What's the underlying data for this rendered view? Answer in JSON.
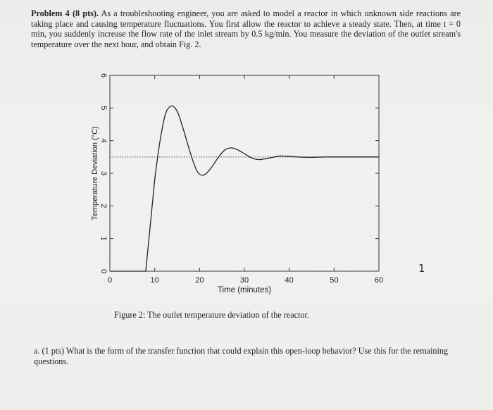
{
  "problem": {
    "heading": "Problem 4 (8 pts).",
    "text": " As a troubleshooting engineer, you are asked to model a reactor in which unknown side reactions are taking place and causing temperature fluctuations. You first allow the reactor to achieve a steady state. Then, at time t = 0 min, you suddenly increase the flow rate of the inlet stream by 0.5 kg/min. You measure the deviation of the outlet stream's temperature over the next hour, and obtain Fig. 2."
  },
  "figure": {
    "caption": "Figure 2:  The outlet temperature deviation of the reactor."
  },
  "question": {
    "label": "a.",
    "text": "(1 pts) What is the form of the transfer function that could explain this open-loop behavior? Use this for the remaining questions."
  },
  "handwritten_mark": "1",
  "chart_data": {
    "type": "line",
    "xlabel": "Time (minutes)",
    "ylabel": "Temperature Deviation (°C)",
    "xlim": [
      0,
      60
    ],
    "ylim": [
      0,
      6
    ],
    "xticks": [
      0,
      10,
      20,
      30,
      40,
      50,
      60
    ],
    "yticks": [
      0,
      1,
      2,
      3,
      4,
      5,
      6
    ],
    "grid": false,
    "reference_line": {
      "y": 3.5,
      "style": "dotted"
    },
    "series": [
      {
        "x": [
          0,
          5,
          8,
          10,
          12,
          13.5,
          15,
          16.5,
          18,
          19.5,
          21,
          22.5,
          24,
          25.5,
          27,
          28.5,
          30,
          31.5,
          33,
          34.5,
          36,
          38,
          40,
          42,
          45,
          48,
          52,
          56,
          60
        ],
        "values": [
          0,
          0,
          0,
          2.8,
          4.6,
          5.05,
          4.9,
          4.3,
          3.6,
          3.05,
          2.95,
          3.15,
          3.45,
          3.7,
          3.78,
          3.72,
          3.6,
          3.48,
          3.42,
          3.44,
          3.48,
          3.53,
          3.52,
          3.5,
          3.49,
          3.5,
          3.5,
          3.5,
          3.5
        ]
      }
    ]
  }
}
